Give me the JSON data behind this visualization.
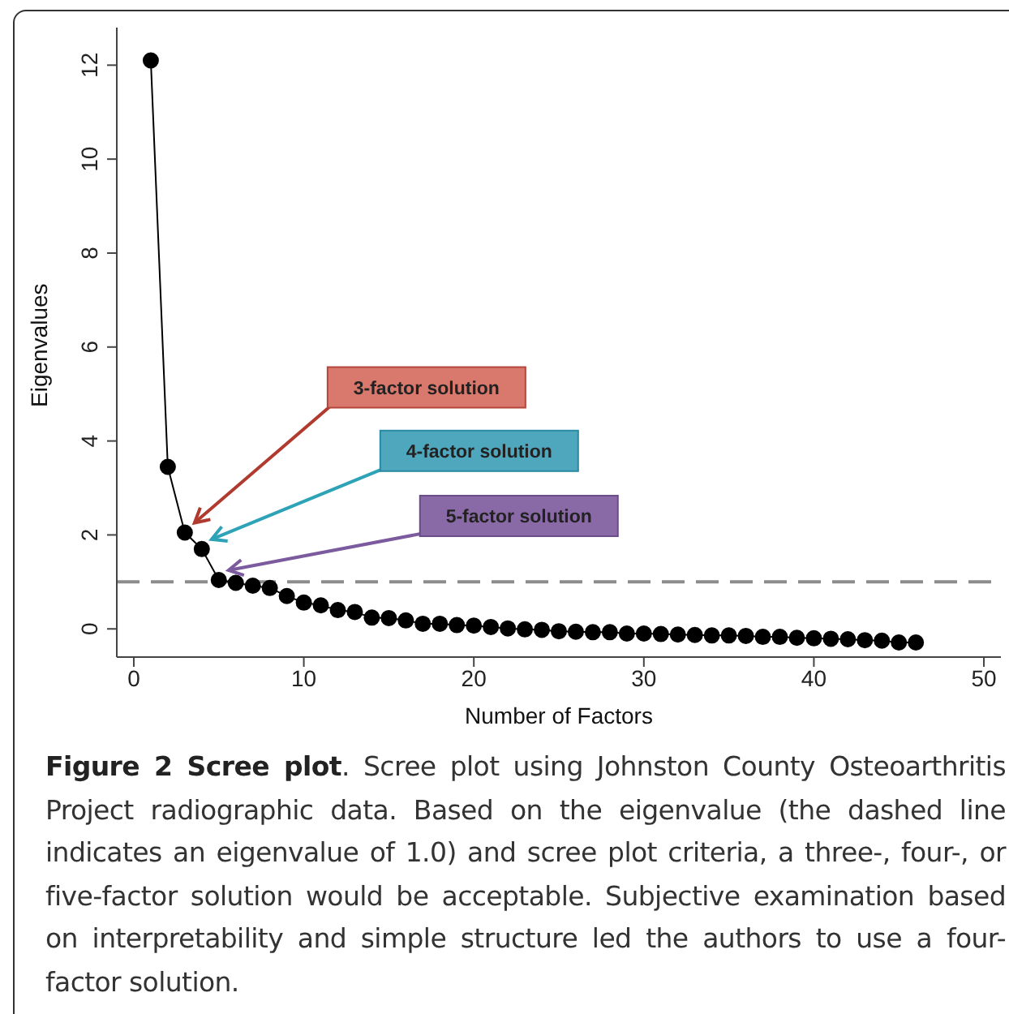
{
  "chart_data": {
    "type": "line",
    "title": "Figure 2 Scree plot",
    "xlabel": "Number of Factors",
    "ylabel": "Eigenvalues",
    "x": [
      1,
      2,
      3,
      4,
      5,
      6,
      7,
      8,
      9,
      10,
      11,
      12,
      13,
      14,
      15,
      16,
      17,
      18,
      19,
      20,
      21,
      22,
      23,
      24,
      25,
      26,
      27,
      28,
      29,
      30,
      31,
      32,
      33,
      34,
      35,
      36,
      37,
      38,
      39,
      40,
      41,
      42,
      43,
      44,
      45,
      46
    ],
    "series": [
      {
        "color": "#000000",
        "values": [
          12.1,
          3.45,
          2.05,
          1.7,
          1.04,
          0.98,
          0.92,
          0.87,
          0.7,
          0.56,
          0.5,
          0.4,
          0.36,
          0.24,
          0.23,
          0.18,
          0.11,
          0.11,
          0.08,
          0.07,
          0.04,
          0.01,
          -0.01,
          -0.02,
          -0.05,
          -0.06,
          -0.07,
          -0.07,
          -0.1,
          -0.1,
          -0.11,
          -0.12,
          -0.13,
          -0.14,
          -0.14,
          -0.15,
          -0.17,
          -0.17,
          -0.19,
          -0.2,
          -0.21,
          -0.22,
          -0.24,
          -0.25,
          -0.29,
          -0.29
        ]
      }
    ],
    "xlim": [
      -1,
      51
    ],
    "xticks": [
      0,
      10,
      20,
      30,
      40,
      50
    ],
    "ylim": [
      -0.6,
      12.8
    ],
    "yticks": [
      0,
      2,
      4,
      6,
      8,
      10,
      12
    ],
    "marker": "circle",
    "line_style": "solid",
    "grid": false,
    "legend": false,
    "ref_lines": [
      {
        "axis": "y",
        "value": 1,
        "color": "#8c8c8c",
        "line_style": "dashed"
      }
    ],
    "annotations": [
      {
        "text": "3-factor solution",
        "x": 3,
        "y": 2.05
      },
      {
        "text": "4-factor solution",
        "x": 4,
        "y": 1.7
      },
      {
        "text": "5-factor solution",
        "x": 5,
        "y": 1.04
      },
      ". Scree plot using Johnston County Osteoarthritis Project radiographic data. Based on the eigenvalue (the dashed line indicates an eigenvalue of 1.0) and scree plot criteria, a three-, four-, or five-factor solution would be acceptable. Subjective examination based on interpretability and simple structure led the authors to use a four-factor solution."
    ]
  }
}
